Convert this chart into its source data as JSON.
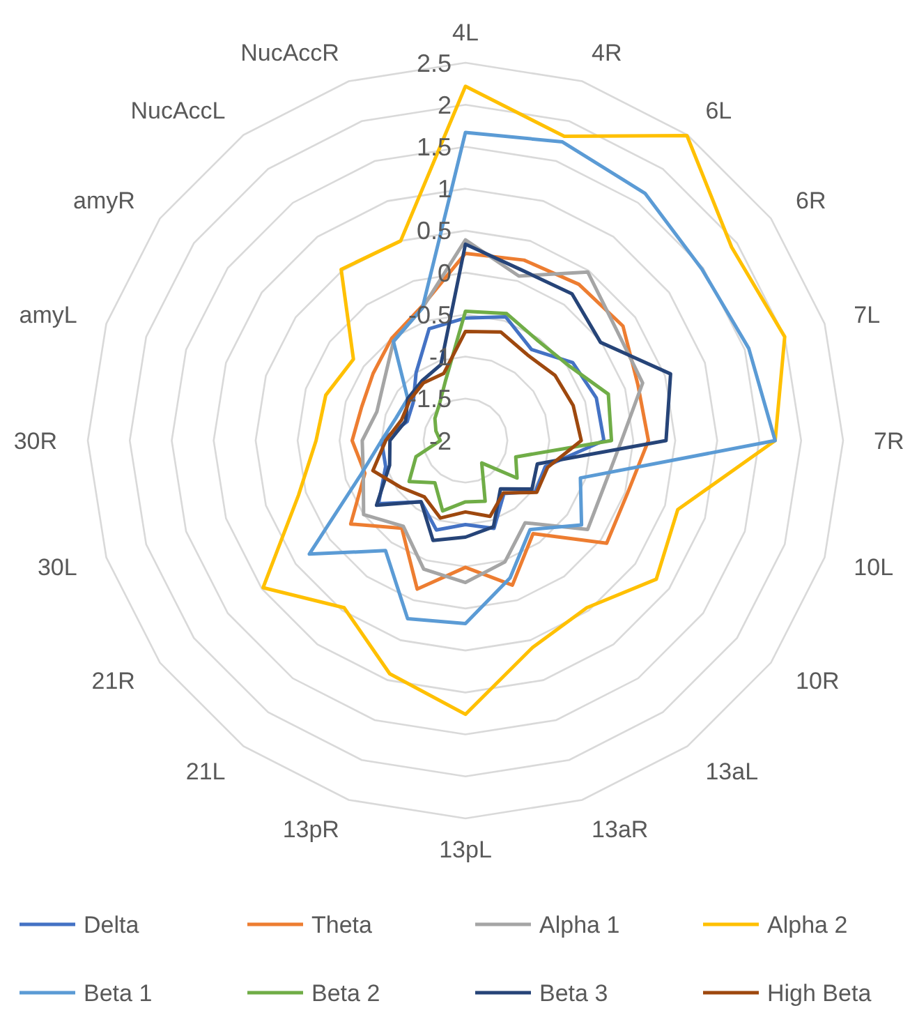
{
  "chart_data": {
    "type": "radar",
    "categories": [
      "4L",
      "4R",
      "6L",
      "6R",
      "7L",
      "7R",
      "10L",
      "10R",
      "13aL",
      "13aR",
      "13pL",
      "13pR",
      "21L",
      "21R",
      "30L",
      "30R",
      "amyL",
      "amyR",
      "NucAccL",
      "NucAccR"
    ],
    "ylim": [
      -2,
      2.5
    ],
    "yticks": [
      -2,
      -1.5,
      -1,
      -0.5,
      0,
      0.5,
      1,
      1.5,
      2,
      2.5
    ],
    "grid": true,
    "legend": "bottom",
    "marker": "none",
    "series": [
      {
        "name": "Delta",
        "color": "#4472c4",
        "values": [
          -0.54,
          -0.45,
          -0.66,
          -0.42,
          -0.36,
          -0.35,
          -1.0,
          -0.97,
          -1.22,
          -0.9,
          -1.0,
          -0.88,
          -1.1,
          -0.72,
          -1.0,
          -1.0,
          -1.27,
          -1.23,
          -1.0,
          -0.6
        ]
      },
      {
        "name": "Theta",
        "color": "#ed7d31",
        "values": [
          0.23,
          0.26,
          0.3,
          0.32,
          0.16,
          0.18,
          0.03,
          0.08,
          -0.63,
          -0.19,
          -0.49,
          -0.14,
          -0.71,
          -0.31,
          -0.74,
          -0.65,
          -0.7,
          -0.64,
          -0.5,
          -0.32
        ]
      },
      {
        "name": "Alpha 1",
        "color": "#a5a5a5",
        "values": [
          0.39,
          0.06,
          0.48,
          0.23,
          0.22,
          -0.14,
          -0.26,
          -0.2,
          -0.79,
          -0.48,
          -0.31,
          -0.39,
          -0.74,
          -0.5,
          -0.72,
          -0.77,
          -0.89,
          -0.8,
          -0.54,
          -0.34
        ]
      },
      {
        "name": "Alpha 2",
        "color": "#ffc000",
        "values": [
          2.22,
          1.81,
          2.49,
          1.92,
          2.0,
          1.69,
          0.66,
          0.81,
          0.46,
          0.59,
          1.26,
          0.92,
          0.46,
          0.98,
          0.09,
          -0.22,
          -0.25,
          -0.35,
          0.52,
          0.5
        ]
      },
      {
        "name": "Beta 1",
        "color": "#5b9bd5",
        "values": [
          1.67,
          1.74,
          1.64,
          1.48,
          1.55,
          1.69,
          -0.56,
          -0.29,
          -0.69,
          -0.28,
          0.18,
          0.23,
          -0.38,
          0.3,
          -0.69,
          -1.0,
          -1.13,
          -1.15,
          -0.54,
          -0.34
        ]
      },
      {
        "name": "Beta 2",
        "color": "#70ad47",
        "values": [
          -0.46,
          -0.41,
          -0.53,
          -0.48,
          -0.21,
          -0.26,
          -1.37,
          -1.24,
          -1.67,
          -1.24,
          -1.27,
          -1.12,
          -1.38,
          -1.17,
          -1.38,
          -1.7,
          -1.63,
          -1.55,
          -1.47,
          -1.24
        ]
      },
      {
        "name": "Beta 3",
        "color": "#264478",
        "values": [
          0.34,
          0.14,
          0.16,
          -0.01,
          0.57,
          0.39,
          -1.1,
          -1.02,
          -1.29,
          -0.92,
          -0.85,
          -0.75,
          -1.1,
          -0.69,
          -1.05,
          -1.1,
          -1.25,
          -1.15,
          -1.12,
          -1.05
        ]
      },
      {
        "name": "High Beta",
        "color": "#9e480e",
        "values": [
          -0.7,
          -0.64,
          -0.74,
          -0.68,
          -0.65,
          -0.62,
          -0.97,
          -0.95,
          -1.23,
          -1.05,
          -1.15,
          -1.03,
          -1.17,
          -1.05,
          -0.84,
          -1.05,
          -1.2,
          -1.18,
          -1.15,
          -1.16
        ]
      }
    ]
  }
}
